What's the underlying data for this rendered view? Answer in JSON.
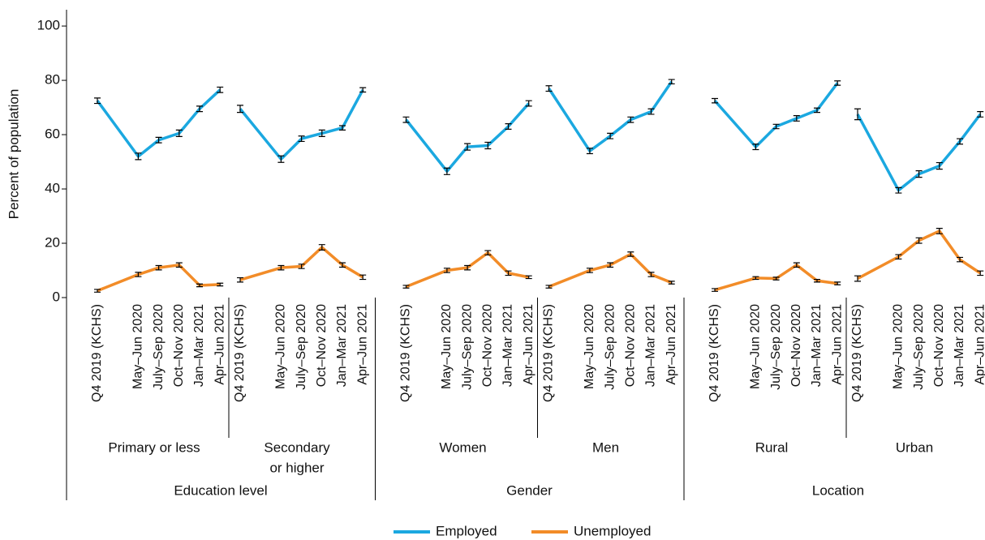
{
  "chart_data": {
    "type": "line",
    "y_label": "Percent of population",
    "ylim": [
      0,
      106
    ],
    "yticks": [
      0,
      20,
      40,
      60,
      80,
      100
    ],
    "categories": [
      "Q4 2019 (KCHS)",
      "May–Jun 2020",
      "July–Sep 2020",
      "Oct–Nov 2020",
      "Jan–Mar 2021",
      "Apr–Jun 2021"
    ],
    "series": [
      {
        "name": "Employed",
        "color": "#1ba8e0"
      },
      {
        "name": "Unemployed",
        "color": "#f28c28"
      }
    ],
    "groups": [
      {
        "label": "Education level",
        "panels": [
          {
            "label_lines": [
              "Primary or less"
            ],
            "series": [
              {
                "values": [
                  72.5,
                  52,
                  58,
                  60.5,
                  69.5,
                  76.5
                ],
                "errors": [
                  1,
                  1.2,
                  1,
                  1.2,
                  1,
                  1
                ]
              },
              {
                "values": [
                  2.5,
                  8.5,
                  11,
                  12,
                  4.5,
                  4.8
                ],
                "errors": [
                  0.5,
                  0.8,
                  0.8,
                  0.8,
                  0.5,
                  0.5
                ]
              }
            ]
          },
          {
            "label_lines": [
              "Secondary",
              "or higher"
            ],
            "series": [
              {
                "values": [
                  69.5,
                  51,
                  58.5,
                  60.5,
                  62.5,
                  76.5
                ],
                "errors": [
                  1.3,
                  1.2,
                  1,
                  1.2,
                  0.8,
                  0.8
                ]
              },
              {
                "values": [
                  6.5,
                  11,
                  11.5,
                  18.5,
                  12,
                  7.5
                ],
                "errors": [
                  0.8,
                  0.8,
                  0.8,
                  1,
                  0.8,
                  0.8
                ]
              }
            ]
          }
        ]
      },
      {
        "label": "Gender",
        "panels": [
          {
            "label_lines": [
              "Women"
            ],
            "series": [
              {
                "values": [
                  65.5,
                  46.5,
                  55.5,
                  56,
                  63,
                  71.5
                ],
                "errors": [
                  1,
                  1.2,
                  1.2,
                  1.2,
                  1,
                  1
                ]
              },
              {
                "values": [
                  4,
                  10,
                  11,
                  16.5,
                  9,
                  7.5
                ],
                "errors": [
                  0.5,
                  0.8,
                  0.8,
                  0.8,
                  0.8,
                  0.5
                ]
              }
            ]
          },
          {
            "label_lines": [
              "Men"
            ],
            "series": [
              {
                "values": [
                  77,
                  54,
                  59.5,
                  65.5,
                  68.5,
                  79.5
                ],
                "errors": [
                  1,
                  1,
                  1,
                  1,
                  1,
                  0.8
                ]
              },
              {
                "values": [
                  4,
                  10,
                  12,
                  16,
                  8.5,
                  5.5
                ],
                "errors": [
                  0.5,
                  0.8,
                  0.8,
                  0.8,
                  0.8,
                  0.5
                ]
              }
            ]
          }
        ]
      },
      {
        "label": "Location",
        "panels": [
          {
            "label_lines": [
              "Rural"
            ],
            "series": [
              {
                "values": [
                  72.5,
                  55.5,
                  63,
                  66,
                  69,
                  79
                ],
                "errors": [
                  0.8,
                  1,
                  0.8,
                  1,
                  0.8,
                  0.8
                ]
              },
              {
                "values": [
                  2.8,
                  7.2,
                  7,
                  12,
                  6.2,
                  5.2
                ],
                "errors": [
                  0.5,
                  0.5,
                  0.5,
                  0.8,
                  0.5,
                  0.5
                ]
              }
            ]
          },
          {
            "label_lines": [
              "Urban"
            ],
            "series": [
              {
                "values": [
                  67.5,
                  39.5,
                  45.5,
                  48.5,
                  57.5,
                  67.5
                ],
                "errors": [
                  2,
                  1,
                  1.2,
                  1.2,
                  1,
                  1
                ]
              },
              {
                "values": [
                  7,
                  15,
                  21,
                  24.5,
                  14,
                  9
                ],
                "errors": [
                  1,
                  0.8,
                  1,
                  1,
                  0.8,
                  0.8
                ]
              }
            ]
          }
        ]
      }
    ]
  }
}
